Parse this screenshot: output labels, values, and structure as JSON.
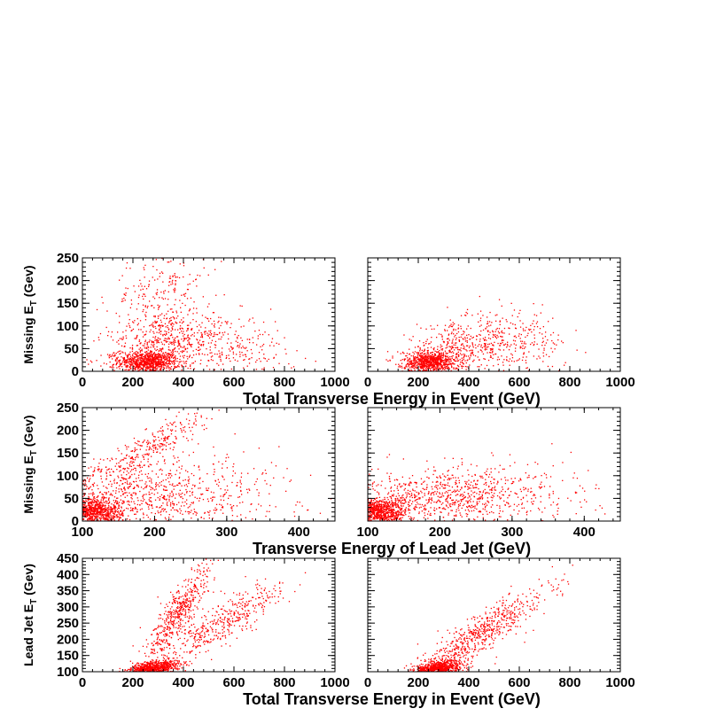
{
  "colors": {
    "points": "#ff0000",
    "axes": "#000000",
    "background": "#ffffff"
  },
  "chart_data": [
    {
      "type": "scatter",
      "row": 0,
      "column": 0,
      "xlim": [
        0,
        1000
      ],
      "ylim": [
        0,
        250
      ],
      "xticks": [
        "0",
        "200",
        "400",
        "600",
        "800",
        "1000"
      ],
      "yticks": [
        "0",
        "50",
        "100",
        "150",
        "200",
        "250"
      ],
      "ylabel_main": "Missing E",
      "ylabel_sub": "T",
      "ylabel_unit": " (Gev)",
      "xlabel": "Total Transverse Energy in Event (GeV)",
      "clusters": [
        {
          "x": [
            260,
            60
          ],
          "y": [
            20,
            12
          ],
          "n": 800,
          "rho": 0
        },
        {
          "x": [
            300,
            100
          ],
          "y": [
            60,
            40
          ],
          "n": 500,
          "rho": 0.3
        },
        {
          "x": [
            300,
            100
          ],
          "y": [
            180,
            50
          ],
          "n": 200,
          "rho": 0.4
        },
        {
          "x": [
            550,
            130
          ],
          "y": [
            60,
            40
          ],
          "n": 350,
          "rho": -0.3
        }
      ]
    },
    {
      "type": "scatter",
      "row": 0,
      "column": 1,
      "xlim": [
        0,
        1000
      ],
      "ylim": [
        0,
        250
      ],
      "xticks": [
        "0",
        "200",
        "400",
        "600",
        "800",
        "1000"
      ],
      "yticks": [],
      "clusters": [
        {
          "x": [
            250,
            55
          ],
          "y": [
            20,
            12
          ],
          "n": 800,
          "rho": 0
        },
        {
          "x": [
            350,
            120
          ],
          "y": [
            50,
            30
          ],
          "n": 350,
          "rho": 0.4
        },
        {
          "x": [
            550,
            120
          ],
          "y": [
            60,
            35
          ],
          "n": 300,
          "rho": 0
        }
      ]
    },
    {
      "type": "scatter",
      "row": 1,
      "column": 0,
      "xlim": [
        100,
        450
      ],
      "ylim": [
        0,
        250
      ],
      "xticks": [
        "100",
        "200",
        "300",
        "400"
      ],
      "yticks": [
        "0",
        "50",
        "100",
        "150",
        "200",
        "250"
      ],
      "ylabel_main": "Missing E",
      "ylabel_sub": "T",
      "ylabel_unit": " (Gev)",
      "xlabel": "Transverse Energy of Lead Jet (GeV)",
      "clusters": [
        {
          "x": [
            115,
            20
          ],
          "y": [
            20,
            15
          ],
          "n": 900,
          "rho": 0
        },
        {
          "x": [
            180,
            60
          ],
          "y": [
            60,
            40
          ],
          "n": 700,
          "rho": 0
        },
        {
          "x": [
            190,
            45
          ],
          "y": [
            160,
            45
          ],
          "n": 300,
          "rho": 0.9
        },
        {
          "x": [
            300,
            60
          ],
          "y": [
            60,
            45
          ],
          "n": 200,
          "rho": 0
        }
      ]
    },
    {
      "type": "scatter",
      "row": 1,
      "column": 1,
      "xlim": [
        100,
        450
      ],
      "ylim": [
        0,
        250
      ],
      "xticks": [
        "100",
        "200",
        "300",
        "400"
      ],
      "yticks": [],
      "clusters": [
        {
          "x": [
            115,
            20
          ],
          "y": [
            20,
            15
          ],
          "n": 900,
          "rho": 0
        },
        {
          "x": [
            200,
            60
          ],
          "y": [
            55,
            30
          ],
          "n": 700,
          "rho": 0.2
        },
        {
          "x": [
            300,
            60
          ],
          "y": [
            60,
            35
          ],
          "n": 200,
          "rho": 0
        }
      ]
    },
    {
      "type": "scatter",
      "row": 2,
      "column": 0,
      "xlim": [
        0,
        1000
      ],
      "ylim": [
        100,
        450
      ],
      "xticks": [
        "0",
        "200",
        "400",
        "600",
        "800",
        "1000"
      ],
      "yticks": [
        "100",
        "150",
        "200",
        "250",
        "300",
        "350",
        "400",
        "450"
      ],
      "ylabel_main": "Lead Jet E",
      "ylabel_sub": "T",
      "ylabel_unit": " (Gev)",
      "xlabel": "Total Transverse Energy in Event (GeV)",
      "clusters": [
        {
          "x": [
            280,
            50
          ],
          "y": [
            110,
            12
          ],
          "n": 800,
          "rho": 0.4
        },
        {
          "x": [
            380,
            70
          ],
          "y": [
            280,
            80
          ],
          "n": 500,
          "rho": 0.9
        },
        {
          "x": [
            550,
            120
          ],
          "y": [
            250,
            60
          ],
          "n": 450,
          "rho": 0.85
        }
      ]
    },
    {
      "type": "scatter",
      "row": 2,
      "column": 1,
      "xlim": [
        0,
        1000
      ],
      "ylim": [
        100,
        450
      ],
      "xticks": [
        "0",
        "200",
        "400",
        "600",
        "800",
        "1000"
      ],
      "yticks": [],
      "clusters": [
        {
          "x": [
            280,
            45
          ],
          "y": [
            110,
            12
          ],
          "n": 800,
          "rho": 0.4
        },
        {
          "x": [
            450,
            130
          ],
          "y": [
            220,
            70
          ],
          "n": 650,
          "rho": 0.9
        }
      ]
    }
  ]
}
